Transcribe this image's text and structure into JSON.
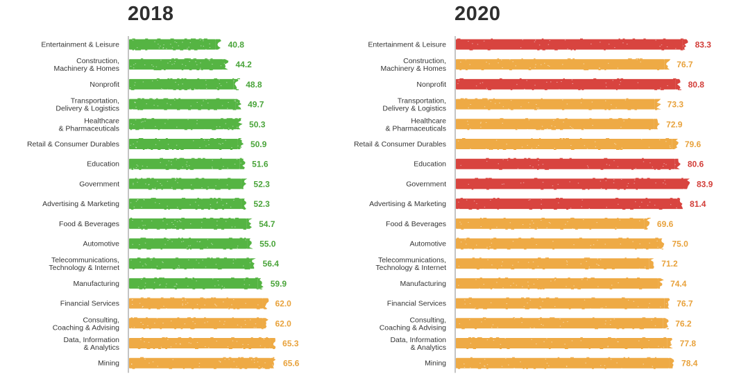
{
  "colors": {
    "green": "#55b443",
    "orange": "#eeaa45",
    "red": "#d8443f",
    "axis": "#888888"
  },
  "chart_data": [
    {
      "type": "bar",
      "orientation": "horizontal",
      "title": "2018",
      "xlim": [
        0,
        85
      ],
      "categories": [
        "Entertainment & Leisure",
        "Construction, Machinery & Homes",
        "Nonprofit",
        "Transportation, Delivery & Logistics",
        "Healthcare & Pharmaceuticals",
        "Retail & Consumer Durables",
        "Education",
        "Government",
        "Advertising & Marketing",
        "Food & Beverages",
        "Automotive",
        "Telecommunications, Technology & Internet",
        "Manufacturing",
        "Financial Services",
        "Consulting, Coaching & Advising",
        "Data, Information & Analytics",
        "Mining"
      ],
      "category_lines": [
        [
          "Entertainment & Leisure"
        ],
        [
          "Construction,",
          "Machinery & Homes"
        ],
        [
          "Nonprofit"
        ],
        [
          "Transportation,",
          "Delivery & Logistics"
        ],
        [
          "Healthcare",
          "& Pharmaceuticals"
        ],
        [
          "Retail & Consumer Durables"
        ],
        [
          "Education"
        ],
        [
          "Government"
        ],
        [
          "Advertising & Marketing"
        ],
        [
          "Food & Beverages"
        ],
        [
          "Automotive"
        ],
        [
          "Telecommunications,",
          "Technology & Internet"
        ],
        [
          "Manufacturing"
        ],
        [
          "Financial Services"
        ],
        [
          "Consulting,",
          "Coaching & Advising"
        ],
        [
          "Data, Information",
          "& Analytics"
        ],
        [
          "Mining"
        ]
      ],
      "values": [
        40.8,
        44.2,
        48.8,
        49.7,
        50.3,
        50.9,
        51.6,
        52.3,
        52.3,
        54.7,
        55.0,
        56.4,
        59.9,
        62.0,
        62.0,
        65.3,
        65.6
      ],
      "value_labels": [
        "40.8",
        "44.2",
        "48.8",
        "49.7",
        "50.3",
        "50.9",
        "51.6",
        "52.3",
        "52.3",
        "54.7",
        "55.0",
        "56.4",
        "59.9",
        "62.0",
        "62.0",
        "65.3",
        "65.6"
      ],
      "bar_colors": [
        "green",
        "green",
        "green",
        "green",
        "green",
        "green",
        "green",
        "green",
        "green",
        "green",
        "green",
        "green",
        "green",
        "orange",
        "orange",
        "orange",
        "orange"
      ]
    },
    {
      "type": "bar",
      "orientation": "horizontal",
      "title": "2020",
      "xlim": [
        0,
        85
      ],
      "categories": [
        "Entertainment & Leisure",
        "Construction, Machinery & Homes",
        "Nonprofit",
        "Transportation, Delivery & Logistics",
        "Healthcare & Pharmaceuticals",
        "Retail & Consumer Durables",
        "Education",
        "Government",
        "Advertising & Marketing",
        "Food & Beverages",
        "Automotive",
        "Telecommunications, Technology & Internet",
        "Manufacturing",
        "Financial Services",
        "Consulting, Coaching & Advising",
        "Data, Information & Analytics",
        "Mining"
      ],
      "category_lines": [
        [
          "Entertainment & Leisure"
        ],
        [
          "Construction,",
          "Machinery & Homes"
        ],
        [
          "Nonprofit"
        ],
        [
          "Transportation,",
          "Delivery & Logistics"
        ],
        [
          "Healthcare",
          "& Pharmaceuticals"
        ],
        [
          "Retail & Consumer Durables"
        ],
        [
          "Education"
        ],
        [
          "Government"
        ],
        [
          "Advertising & Marketing"
        ],
        [
          "Food & Beverages"
        ],
        [
          "Automotive"
        ],
        [
          "Telecommunications,",
          "Technology & Internet"
        ],
        [
          "Manufacturing"
        ],
        [
          "Financial Services"
        ],
        [
          "Consulting,",
          "Coaching & Advising"
        ],
        [
          "Data, Information",
          "& Analytics"
        ],
        [
          "Mining"
        ]
      ],
      "values": [
        83.3,
        76.7,
        80.8,
        73.3,
        72.9,
        79.6,
        80.6,
        83.9,
        81.4,
        69.6,
        75.0,
        71.2,
        74.4,
        76.7,
        76.2,
        77.8,
        78.4
      ],
      "value_labels": [
        "83.3",
        "76.7",
        "80.8",
        "73.3",
        "72.9",
        "79.6",
        "80.6",
        "83.9",
        "81.4",
        "69.6",
        "75.0",
        "71.2",
        "74.4",
        "76.7",
        "76.2",
        "77.8",
        "78.4"
      ],
      "bar_colors": [
        "red",
        "orange",
        "red",
        "orange",
        "orange",
        "orange",
        "red",
        "red",
        "red",
        "orange",
        "orange",
        "orange",
        "orange",
        "orange",
        "orange",
        "orange",
        "orange"
      ]
    }
  ]
}
